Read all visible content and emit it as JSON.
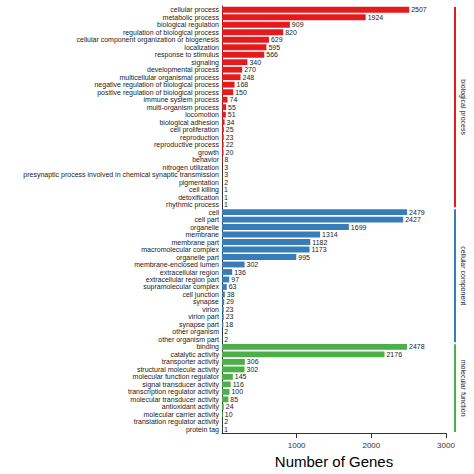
{
  "chart_data": {
    "type": "bar",
    "orientation": "horizontal",
    "x_label": "Number of Genes",
    "categories": [
      "cellular process",
      "metabolic process",
      "biological regulation",
      "regulation of biological process",
      "cellular component organization or biogenesis",
      "localization",
      "response to stimulus",
      "signaling",
      "developmental process",
      "multicellular organismal process",
      "negative regulation of biological process",
      "positive regulation of biological process",
      "immune system process",
      "multi-organism process",
      "locomotion",
      "biological adhesion",
      "cell proliferation",
      "reproduction",
      "reproductive process",
      "growth",
      "behavior",
      "nitrogen utilization",
      "presynaptic process involved in chemical synaptic transmission",
      "pigmentation",
      "cell killing",
      "detoxification",
      "rhythmic process",
      "cell",
      "cell part",
      "organelle",
      "membrane",
      "membrane part",
      "macromolecular complex",
      "organelle part",
      "membrane-enclosed lumen",
      "extracellular region",
      "extracellular region part",
      "supramolecular complex",
      "cell junction",
      "synapse",
      "virion",
      "virion part",
      "synapse part",
      "other organism",
      "other organism part",
      "binding",
      "catalytic activity",
      "transporter activity",
      "structural molecule activity",
      "molecular function regulator",
      "signal transducer activity",
      "transcription regulator activity",
      "molecular transducer activity",
      "antioxidant activity",
      "molecular carrier activity",
      "translation regulator activity",
      "protein tag"
    ],
    "series": [
      {
        "name": "biological process",
        "color": "#e41a1c",
        "values": [
          2507,
          1924,
          909,
          820,
          629,
          595,
          566,
          340,
          270,
          248,
          168,
          150,
          74,
          55,
          51,
          34,
          25,
          23,
          22,
          20,
          8,
          3,
          3,
          2,
          1,
          1,
          1,
          null,
          null,
          null,
          null,
          null,
          null,
          null,
          null,
          null,
          null,
          null,
          null,
          null,
          null,
          null,
          null,
          null,
          null,
          null,
          null,
          null,
          null,
          null,
          null,
          null,
          null,
          null,
          null,
          null,
          null
        ]
      },
      {
        "name": "cellular component",
        "color": "#377eb8",
        "values": [
          null,
          null,
          null,
          null,
          null,
          null,
          null,
          null,
          null,
          null,
          null,
          null,
          null,
          null,
          null,
          null,
          null,
          null,
          null,
          null,
          null,
          null,
          null,
          null,
          null,
          null,
          null,
          2479,
          2427,
          1699,
          1314,
          1182,
          1173,
          995,
          302,
          136,
          97,
          63,
          38,
          29,
          23,
          23,
          18,
          2,
          2,
          null,
          null,
          null,
          null,
          null,
          null,
          null,
          null,
          null,
          null,
          null,
          null
        ]
      },
      {
        "name": "molecular function",
        "color": "#4daf4a",
        "values": [
          null,
          null,
          null,
          null,
          null,
          null,
          null,
          null,
          null,
          null,
          null,
          null,
          null,
          null,
          null,
          null,
          null,
          null,
          null,
          null,
          null,
          null,
          null,
          null,
          null,
          null,
          null,
          null,
          null,
          null,
          null,
          null,
          null,
          null,
          null,
          null,
          null,
          null,
          null,
          null,
          null,
          null,
          null,
          null,
          null,
          2478,
          2176,
          306,
          302,
          145,
          116,
          100,
          85,
          24,
          10,
          2,
          1
        ]
      }
    ],
    "xlim": [
      0,
      3000
    ],
    "xticks": [
      1000,
      2000,
      3000
    ],
    "grid": false,
    "data_labels": true
  }
}
